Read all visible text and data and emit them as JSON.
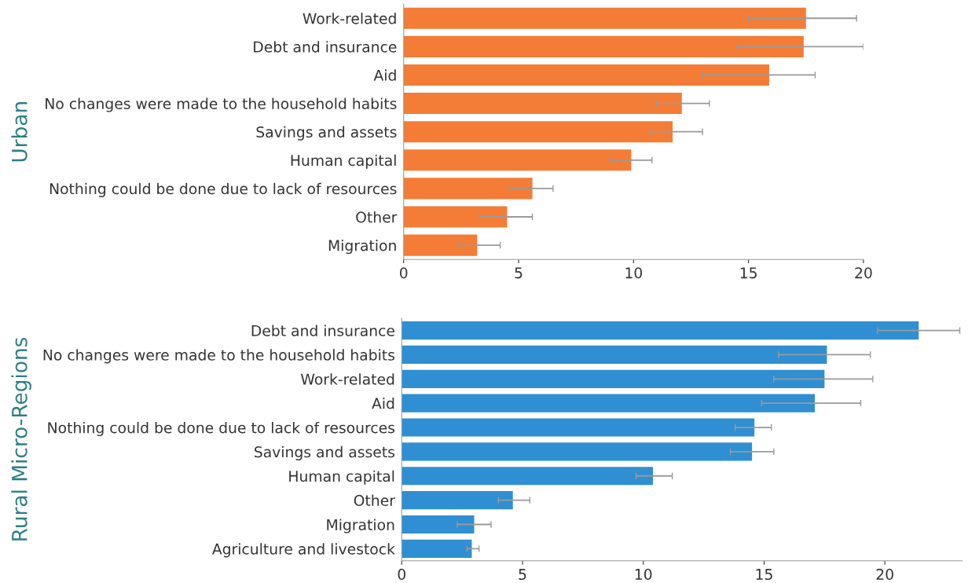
{
  "chart_data": [
    {
      "type": "bar",
      "orientation": "horizontal",
      "ylabel": "Urban",
      "color": "#f47c36",
      "categories": [
        "Work-related",
        "Debt and insurance",
        "Aid",
        "No changes were made to the household habits",
        "Savings and assets",
        "Human capital",
        "Nothing could be done due to lack of resources",
        "Other",
        "Migration"
      ],
      "values": [
        17.5,
        17.4,
        15.9,
        12.1,
        11.7,
        9.9,
        5.6,
        4.5,
        3.2
      ],
      "errors": [
        [
          15.0,
          19.7
        ],
        [
          14.5,
          20.0
        ],
        [
          13.0,
          17.9
        ],
        [
          11.0,
          13.3
        ],
        [
          10.7,
          13.0
        ],
        [
          9.0,
          10.8
        ],
        [
          4.6,
          6.5
        ],
        [
          3.3,
          5.6
        ],
        [
          2.4,
          4.2
        ]
      ],
      "xlim": [
        0,
        20
      ],
      "xticks": [
        0,
        5,
        10,
        15,
        20
      ],
      "grid": false
    },
    {
      "type": "bar",
      "orientation": "horizontal",
      "ylabel": "Rural Micro-Regions",
      "color": "#2f8fd2",
      "categories": [
        "Debt and insurance",
        "No changes were made to the household habits",
        "Work-related",
        "Aid",
        "Nothing could be done due to lack of resources",
        "Savings and assets",
        "Human capital",
        "Other",
        "Migration",
        "Agriculture and livestock"
      ],
      "values": [
        21.4,
        17.6,
        17.5,
        17.1,
        14.6,
        14.5,
        10.4,
        4.6,
        3.0,
        2.9
      ],
      "errors": [
        [
          19.7,
          23.1
        ],
        [
          15.6,
          19.4
        ],
        [
          15.4,
          19.5
        ],
        [
          14.9,
          19.0
        ],
        [
          13.8,
          15.3
        ],
        [
          13.6,
          15.4
        ],
        [
          9.7,
          11.2
        ],
        [
          4.0,
          5.3
        ],
        [
          2.3,
          3.7
        ],
        [
          2.7,
          3.2
        ]
      ],
      "xlim": [
        0,
        23.2
      ],
      "xticks": [
        0,
        5,
        10,
        15,
        20
      ],
      "grid": false
    }
  ]
}
